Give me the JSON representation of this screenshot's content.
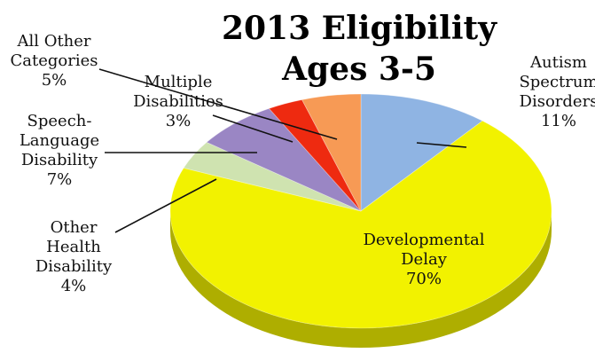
{
  "chart_data": {
    "type": "pie",
    "title_line1": "2013 Eligibility",
    "title_line2": "Ages 3-5",
    "slices": [
      {
        "key": "autism",
        "name_lines": [
          "Autism",
          "Spectrum",
          "Disorders"
        ],
        "value": 11,
        "label": "11%",
        "color": "#8fb4e3"
      },
      {
        "key": "dd",
        "name_lines": [
          "Developmental",
          "Delay"
        ],
        "value": 70,
        "label": "70%",
        "color": "#f2f200"
      },
      {
        "key": "ohd",
        "name_lines": [
          "Other",
          "Health",
          "Disability"
        ],
        "value": 4,
        "label": "4%",
        "color": "#cfe3b0"
      },
      {
        "key": "sld",
        "name_lines": [
          "Speech-",
          "Language",
          "Disability"
        ],
        "value": 7,
        "label": "7%",
        "color": "#9a86c4"
      },
      {
        "key": "md",
        "name_lines": [
          "Multiple",
          "Disabilities"
        ],
        "value": 3,
        "label": "3%",
        "color": "#ee2a10"
      },
      {
        "key": "aoc",
        "name_lines": [
          "All Other",
          "Categories"
        ],
        "value": 5,
        "label": "5%",
        "color": "#f79a55"
      }
    ]
  }
}
